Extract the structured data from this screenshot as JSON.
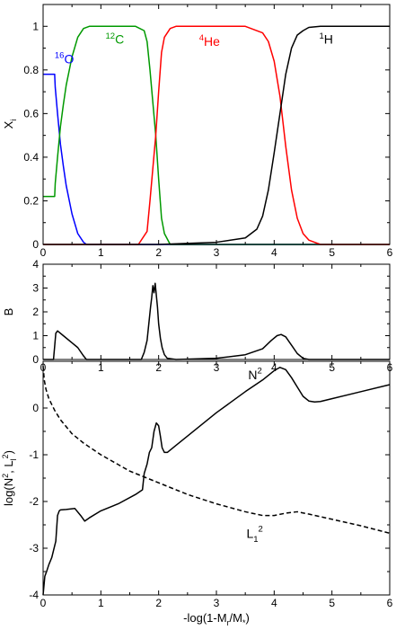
{
  "chart_data": [
    {
      "type": "line",
      "panel": "composition",
      "xlabel": "",
      "ylabel": "X_i",
      "xlim": [
        0,
        6
      ],
      "ylim": [
        0,
        1.1
      ],
      "xticks": [
        0,
        1,
        2,
        3,
        4,
        5,
        6
      ],
      "yticks": [
        0,
        0.2,
        0.4,
        0.6,
        0.8,
        1
      ],
      "ytick_labels": [
        "0",
        "0.2",
        "0.4",
        "0.6",
        "0.8",
        "1"
      ],
      "series": [
        {
          "name": "16O",
          "color": "#0000ff",
          "x": [
            0.0,
            0.2,
            0.21,
            0.25,
            0.3,
            0.35,
            0.4,
            0.5,
            0.6,
            0.7,
            0.75,
            6.0
          ],
          "y": [
            0.78,
            0.78,
            0.72,
            0.6,
            0.46,
            0.36,
            0.27,
            0.14,
            0.05,
            0.01,
            0.0,
            0.0
          ]
        },
        {
          "name": "12C",
          "color": "#009900",
          "x": [
            0.0,
            0.2,
            0.21,
            0.25,
            0.3,
            0.35,
            0.4,
            0.5,
            0.6,
            0.7,
            0.8,
            1.6,
            1.75,
            1.8,
            1.85,
            1.9,
            1.95,
            2.0,
            2.05,
            2.1,
            2.2,
            6.0
          ],
          "y": [
            0.22,
            0.22,
            0.28,
            0.4,
            0.54,
            0.64,
            0.73,
            0.86,
            0.95,
            0.99,
            1.0,
            1.0,
            0.98,
            0.93,
            0.8,
            0.65,
            0.5,
            0.3,
            0.12,
            0.05,
            0.0,
            0.0
          ]
        },
        {
          "name": "4He",
          "color": "#ff0000",
          "x": [
            0.0,
            1.65,
            1.8,
            1.85,
            1.9,
            1.95,
            2.0,
            2.05,
            2.1,
            2.2,
            2.3,
            3.5,
            3.8,
            3.9,
            4.0,
            4.1,
            4.2,
            4.3,
            4.4,
            4.5,
            4.6,
            4.8,
            6.0
          ],
          "y": [
            0.0,
            0.0,
            0.06,
            0.2,
            0.35,
            0.5,
            0.7,
            0.88,
            0.95,
            0.99,
            1.0,
            1.0,
            0.97,
            0.93,
            0.84,
            0.68,
            0.45,
            0.25,
            0.12,
            0.05,
            0.02,
            0.0,
            0.0
          ]
        },
        {
          "name": "1H",
          "color": "#000000",
          "x": [
            0.0,
            2.0,
            3.0,
            3.5,
            3.7,
            3.8,
            3.9,
            4.0,
            4.1,
            4.2,
            4.3,
            4.4,
            4.5,
            4.6,
            4.8,
            5.0,
            6.0
          ],
          "y": [
            0.0,
            0.0,
            0.01,
            0.03,
            0.07,
            0.13,
            0.25,
            0.42,
            0.6,
            0.78,
            0.9,
            0.96,
            0.98,
            0.995,
            1.0,
            1.0,
            1.0
          ]
        }
      ],
      "annotations": [
        {
          "sup": "16",
          "text": "O",
          "x": 0.2,
          "y": 0.83,
          "color": "#0000ff"
        },
        {
          "sup": "12",
          "text": "C",
          "x": 1.08,
          "y": 0.92,
          "color": "#009900"
        },
        {
          "sup": "4",
          "text": "He",
          "x": 2.7,
          "y": 0.91,
          "color": "#ff0000"
        },
        {
          "sup": "1",
          "text": "H",
          "x": 4.78,
          "y": 0.92,
          "color": "#000000"
        }
      ]
    },
    {
      "type": "line",
      "panel": "ledoux",
      "xlabel": "",
      "ylabel": "B",
      "xlim": [
        0,
        6
      ],
      "ylim": [
        0,
        4
      ],
      "xticks": [
        0,
        1,
        2,
        3,
        4,
        5,
        6
      ],
      "yticks": [
        0,
        1,
        2,
        3,
        4
      ],
      "ytick_labels": [
        "0",
        "1",
        "2",
        "3",
        "4"
      ],
      "series": [
        {
          "name": "",
          "color": "#000000",
          "x": [
            0.0,
            0.18,
            0.22,
            0.25,
            0.35,
            0.5,
            0.6,
            0.7,
            0.75,
            1.7,
            1.75,
            1.8,
            1.83,
            1.86,
            1.88,
            1.9,
            1.92,
            1.94,
            1.96,
            1.98,
            2.0,
            2.03,
            2.06,
            2.1,
            2.15,
            2.3,
            3.0,
            3.5,
            3.8,
            3.95,
            4.05,
            4.12,
            4.2,
            4.3,
            4.4,
            4.5,
            4.6,
            6.0
          ],
          "y": [
            0.0,
            0.0,
            1.1,
            1.2,
            1.0,
            0.7,
            0.5,
            0.15,
            0.0,
            0.0,
            0.3,
            0.8,
            1.5,
            2.2,
            2.6,
            3.1,
            2.8,
            3.2,
            2.7,
            2.2,
            1.5,
            0.9,
            0.5,
            0.2,
            0.05,
            0.0,
            0.05,
            0.2,
            0.45,
            0.8,
            1.0,
            1.05,
            0.95,
            0.6,
            0.25,
            0.05,
            0.0,
            0.0
          ]
        }
      ]
    },
    {
      "type": "line",
      "panel": "frequencies",
      "xlabel": "-log(1-M_r/M_*)",
      "ylabel": "log(N^2, L_l^2)",
      "xlim": [
        0,
        6
      ],
      "ylim": [
        -4,
        1
      ],
      "xticks": [
        0,
        1,
        2,
        3,
        4,
        5,
        6
      ],
      "yticks": [
        -4,
        -3,
        -2,
        -1,
        0
      ],
      "ytick_labels": [
        "-4",
        "-3",
        "-2",
        "-1",
        "0"
      ],
      "series": [
        {
          "name": "N2",
          "color": "#000000",
          "dash": "solid",
          "x": [
            0.0,
            0.03,
            0.06,
            0.1,
            0.15,
            0.18,
            0.22,
            0.25,
            0.28,
            0.3,
            0.4,
            0.55,
            0.65,
            0.72,
            0.8,
            1.0,
            1.3,
            1.6,
            1.72,
            1.75,
            1.8,
            1.84,
            1.88,
            1.92,
            1.96,
            2.0,
            2.03,
            2.06,
            2.1,
            2.15,
            2.2,
            2.3,
            2.5,
            3.0,
            3.5,
            3.8,
            4.0,
            4.1,
            4.2,
            4.3,
            4.4,
            4.5,
            4.6,
            4.7,
            4.8,
            5.0,
            5.5,
            6.0
          ],
          "y": [
            -4.0,
            -3.6,
            -3.5,
            -3.35,
            -3.2,
            -3.05,
            -2.85,
            -2.3,
            -2.2,
            -2.18,
            -2.17,
            -2.15,
            -2.3,
            -2.42,
            -2.35,
            -2.2,
            -2.05,
            -1.85,
            -1.75,
            -1.4,
            -1.2,
            -0.95,
            -0.85,
            -0.5,
            -0.32,
            -0.38,
            -0.6,
            -0.85,
            -0.95,
            -0.95,
            -0.9,
            -0.8,
            -0.6,
            -0.1,
            0.35,
            0.6,
            0.8,
            0.87,
            0.82,
            0.65,
            0.45,
            0.25,
            0.15,
            0.13,
            0.14,
            0.2,
            0.35,
            0.5
          ]
        },
        {
          "name": "L12",
          "color": "#000000",
          "dash": "dashed",
          "x": [
            0.0,
            0.02,
            0.05,
            0.1,
            0.2,
            0.3,
            0.5,
            0.7,
            1.0,
            1.5,
            2.0,
            2.5,
            3.0,
            3.5,
            3.8,
            4.0,
            4.2,
            4.4,
            4.6,
            5.0,
            5.5,
            6.0
          ],
          "y": [
            0.9,
            0.6,
            0.4,
            0.2,
            -0.05,
            -0.25,
            -0.55,
            -0.75,
            -1.0,
            -1.35,
            -1.6,
            -1.85,
            -2.05,
            -2.22,
            -2.3,
            -2.3,
            -2.25,
            -2.22,
            -2.27,
            -2.38,
            -2.52,
            -2.68
          ]
        }
      ],
      "annotations": [
        {
          "sup": "2",
          "text": "N",
          "x": 3.55,
          "y": 0.62,
          "color": "#000000"
        },
        {
          "sup": "2",
          "text": "L",
          "sub": "1",
          "x": 3.52,
          "y": -2.78,
          "color": "#000000"
        }
      ]
    }
  ]
}
